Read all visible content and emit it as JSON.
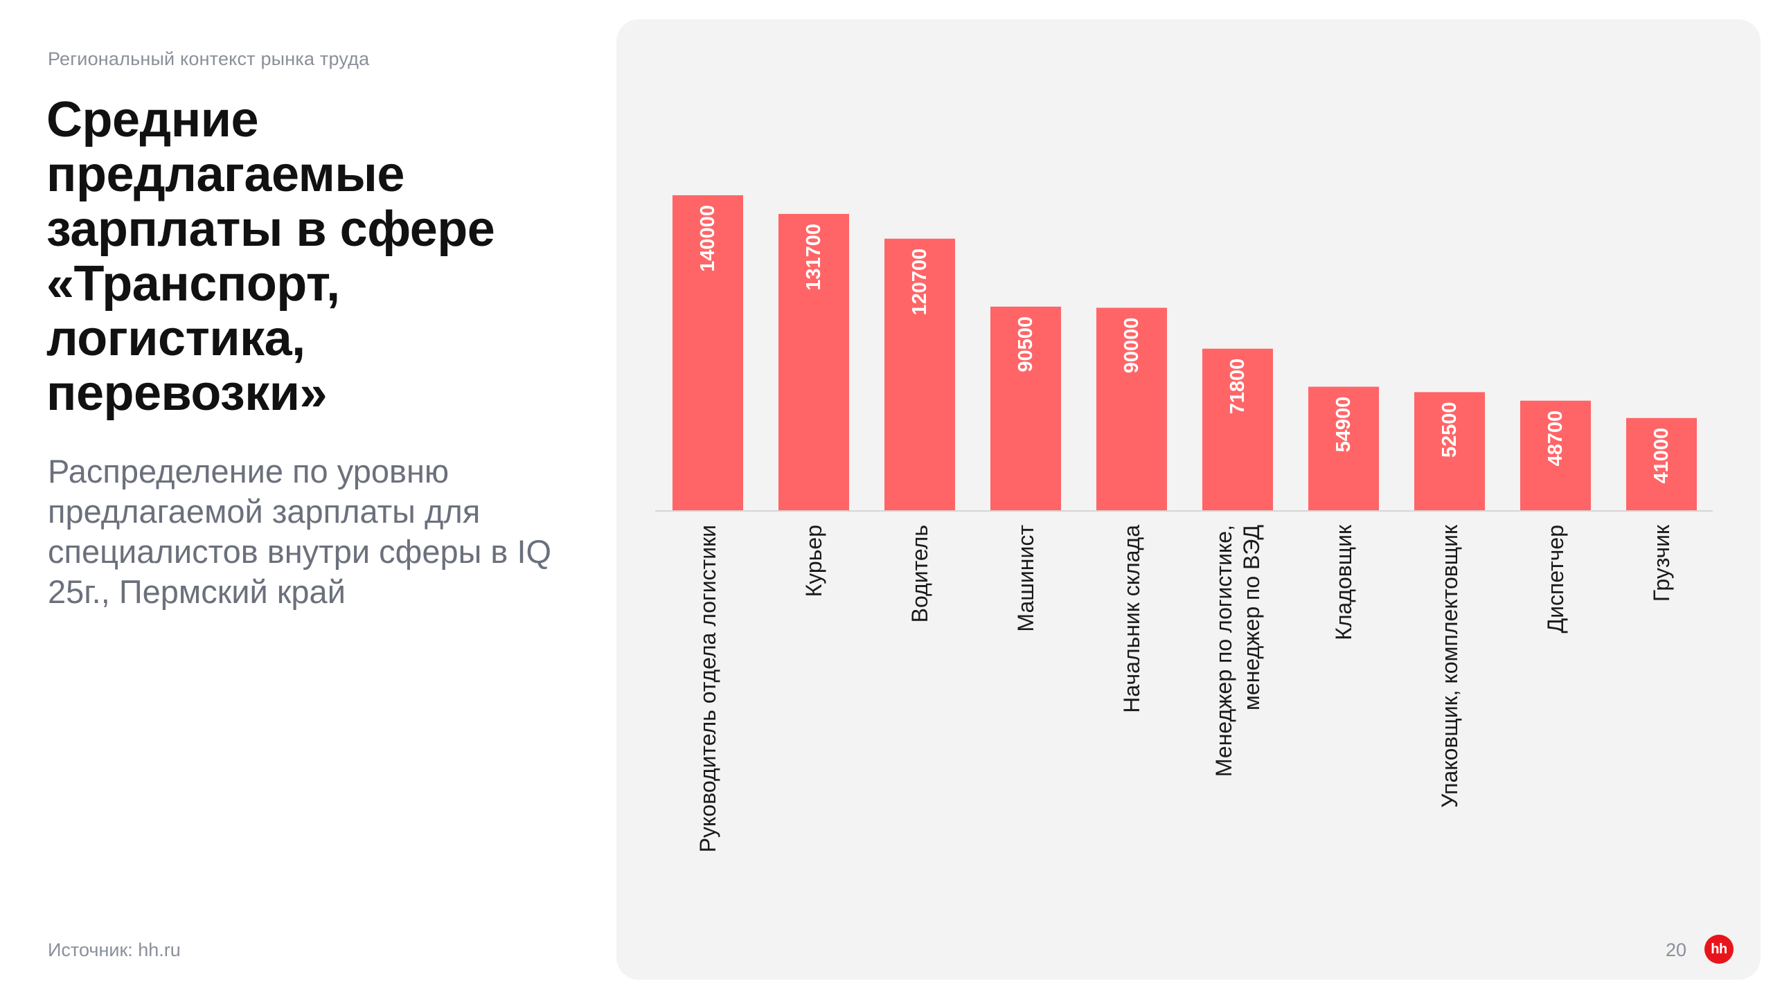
{
  "header": {
    "context": "Региональный контекст рынка труда"
  },
  "title": {
    "lines": [
      "Средние",
      "предлагаемые",
      "зарплаты в сфере",
      "«Транспорт,",
      "логистика,",
      "перевозки»"
    ]
  },
  "subtitle": {
    "text": "Распределение по уровню предлагаемой зарплаты для специалистов внутри сферы в IQ 25г., Пермский край"
  },
  "footer": {
    "source": "Источник: hh.ru",
    "page_number": "20",
    "logo_text": "hh"
  },
  "colors": {
    "bar": "#ff6567",
    "axis": "#d6d6d6",
    "bar_label": "#ffffff",
    "category_label": "#1a1a1a",
    "logo": "#e8141b"
  },
  "chart_data": {
    "type": "bar",
    "title": "",
    "xlabel": "",
    "ylabel": "",
    "ylim": [
      0,
      140000
    ],
    "categories": [
      [
        "Руководитель отдела логистики"
      ],
      [
        "Курьер"
      ],
      [
        "Водитель"
      ],
      [
        "Машинист"
      ],
      [
        "Начальник склада"
      ],
      [
        "Менеджер по логистике,",
        "менеджер по ВЭД"
      ],
      [
        "Кладовщик"
      ],
      [
        "Упаковщик, комплектовщик"
      ],
      [
        "Диспетчер"
      ],
      [
        "Грузчик"
      ]
    ],
    "values": [
      140000,
      131700,
      120700,
      90500,
      90000,
      71800,
      54900,
      52500,
      48700,
      41000
    ],
    "value_labels": [
      "140000",
      "131700",
      "120700",
      "90500",
      "90000",
      "71800",
      "54900",
      "52500",
      "48700",
      "41000"
    ]
  }
}
